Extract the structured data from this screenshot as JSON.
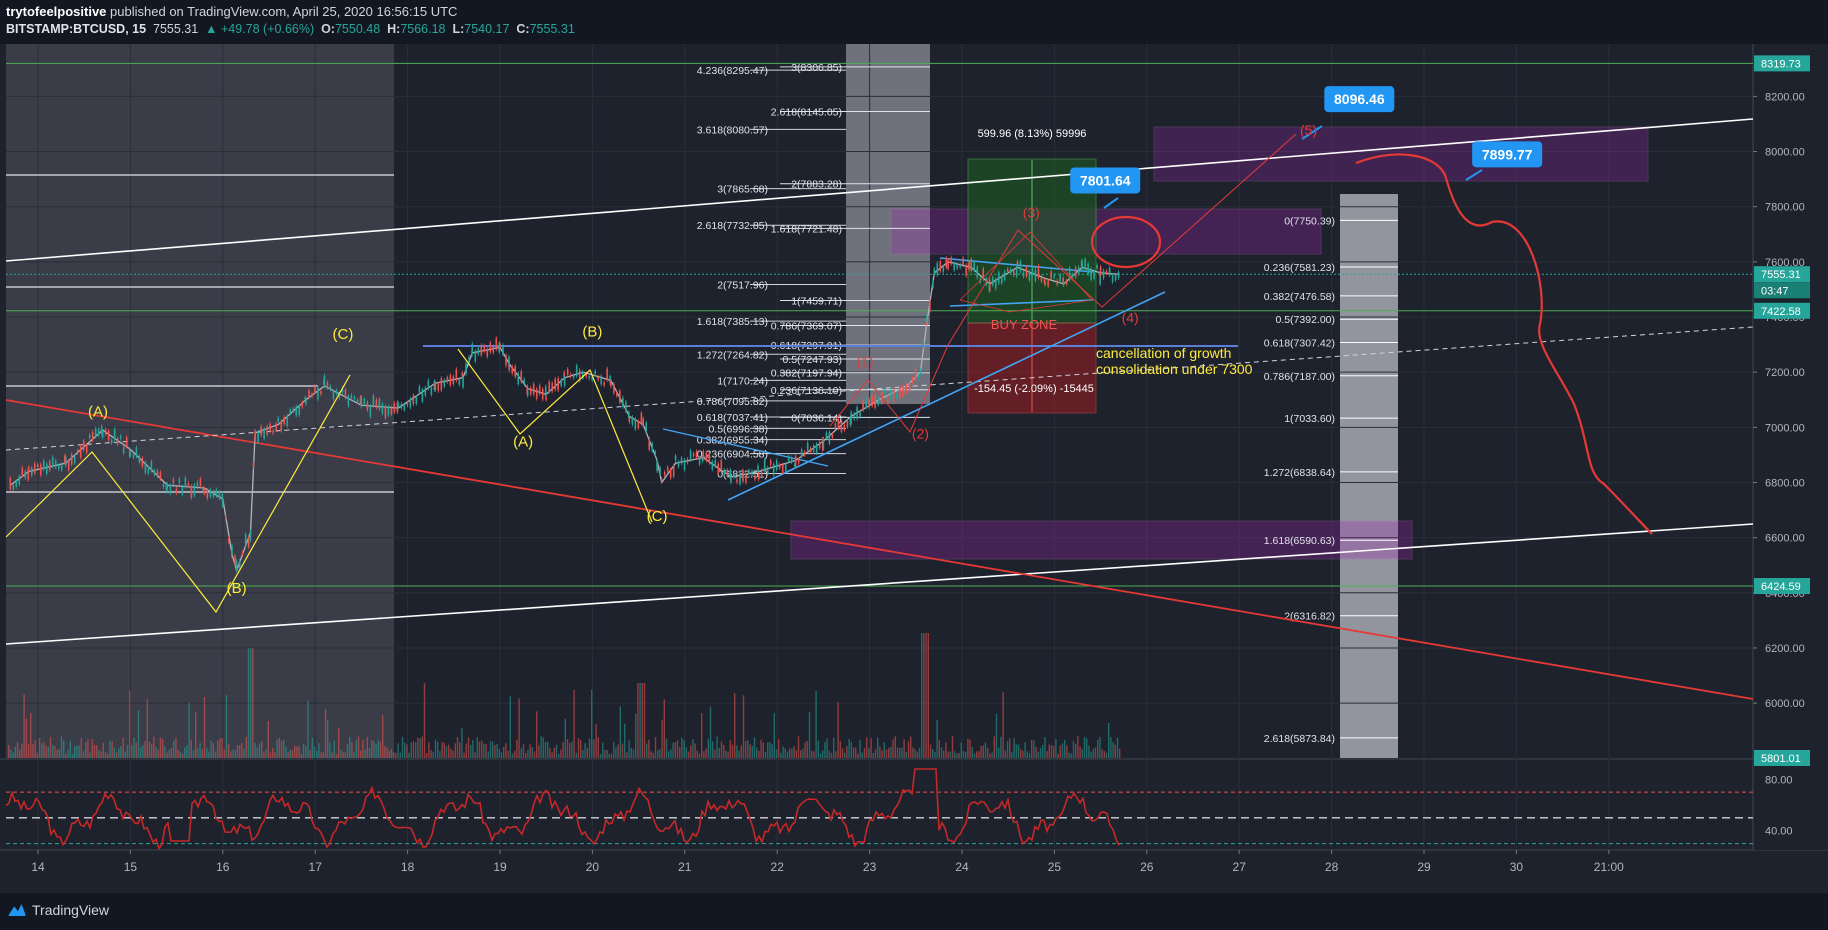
{
  "header": {
    "author": "trytofeelpositive",
    "published_text": "published on TradingView.com, April 25, 2020 16:56:15 UTC",
    "symbol": "BITSTAMP:BTCUSD, 15",
    "last": "7555.31",
    "change": "▲ +49.78 (+0.66%)",
    "open_label": "O:",
    "open": "7550.48",
    "high_label": "H:",
    "high": "7566.18",
    "low_label": "L:",
    "low": "7540.17",
    "close_label": "C:",
    "close": "7555.31"
  },
  "footer": {
    "brand": "TradingView"
  },
  "colors": {
    "background": "#1e222d",
    "grid": "#2a2e39",
    "candle_up": "#26a69a",
    "candle_down": "#ef5350",
    "elliott": "#ffeb3b",
    "trend_red": "#e53935",
    "zone_purple": "#9c27b0",
    "callout": "#2196f3"
  },
  "chart_data": {
    "type": "candlestick",
    "symbol": "BITSTAMP:BTCUSD",
    "interval": "15",
    "y_axis": {
      "range": [
        5801,
        8390
      ],
      "ticks": [
        6000,
        6200,
        6400,
        6600,
        6800,
        7000,
        7200,
        7400,
        7600,
        7800,
        8000,
        8200
      ],
      "tick_labels": [
        "6000.00",
        "6200.00",
        "6400.00",
        "6600.00",
        "6800.00",
        "7000.00",
        "7200.00",
        "7400.00",
        "7600.00",
        "7800.00",
        "8000.00",
        "8200.00"
      ]
    },
    "x_axis": {
      "ticks": [
        14,
        15,
        16,
        17,
        18,
        19,
        20,
        21,
        22,
        23,
        24,
        25,
        26,
        27,
        28,
        29,
        30,
        31
      ],
      "tick_labels": [
        "14",
        "15",
        "16",
        "17",
        "18",
        "19",
        "20",
        "21",
        "22",
        "23",
        "24",
        "25",
        "26",
        "27",
        "28",
        "29",
        "30",
        "21:00"
      ]
    },
    "price_tags": [
      {
        "label": "8319.73",
        "value": 8319.73,
        "color": "#26a69a"
      },
      {
        "label": "7555.31",
        "value": 7555.31,
        "color": "#26a69a"
      },
      {
        "label": "03:47",
        "value": 7497,
        "color": "#26a69a"
      },
      {
        "label": "7422.58",
        "value": 7422.58,
        "color": "#26a69a"
      },
      {
        "label": "6424.59",
        "value": 6424.59,
        "color": "#26a69a"
      },
      {
        "label": "5801.01",
        "value": 5801.01,
        "color": "#26a69a"
      }
    ],
    "price_path": [
      [
        13.7,
        6790
      ],
      [
        13.9,
        6840
      ],
      [
        14.3,
        6870
      ],
      [
        14.7,
        6990
      ],
      [
        15.0,
        6920
      ],
      [
        15.4,
        6790
      ],
      [
        15.8,
        6780
      ],
      [
        16.0,
        6740
      ],
      [
        16.1,
        6540
      ],
      [
        16.15,
        6480
      ],
      [
        16.3,
        6620
      ],
      [
        16.35,
        6980
      ],
      [
        16.6,
        7010
      ],
      [
        16.9,
        7100
      ],
      [
        17.1,
        7150
      ],
      [
        17.5,
        7080
      ],
      [
        17.9,
        7070
      ],
      [
        18.3,
        7160
      ],
      [
        18.6,
        7180
      ],
      [
        18.7,
        7270
      ],
      [
        19.0,
        7290
      ],
      [
        19.1,
        7230
      ],
      [
        19.3,
        7140
      ],
      [
        19.5,
        7120
      ],
      [
        19.7,
        7180
      ],
      [
        19.9,
        7200
      ],
      [
        20.2,
        7170
      ],
      [
        20.4,
        7040
      ],
      [
        20.55,
        7010
      ],
      [
        20.7,
        6880
      ],
      [
        20.75,
        6800
      ],
      [
        20.9,
        6870
      ],
      [
        21.2,
        6890
      ],
      [
        21.5,
        6820
      ],
      [
        21.8,
        6840
      ],
      [
        22.2,
        6880
      ],
      [
        22.5,
        6950
      ],
      [
        22.8,
        7040
      ],
      [
        23.1,
        7100
      ],
      [
        23.4,
        7150
      ],
      [
        23.55,
        7200
      ],
      [
        23.62,
        7380
      ],
      [
        23.7,
        7560
      ],
      [
        23.85,
        7600
      ],
      [
        24.1,
        7580
      ],
      [
        24.3,
        7520
      ],
      [
        24.6,
        7580
      ],
      [
        24.9,
        7540
      ],
      [
        25.1,
        7520
      ],
      [
        25.3,
        7580
      ],
      [
        25.5,
        7560
      ],
      [
        25.7,
        7555
      ]
    ],
    "rsi": {
      "levels": [
        70,
        50,
        30
      ],
      "tick_labels": [
        "80.00",
        "40.00"
      ],
      "tick_values": [
        80,
        40
      ],
      "range": [
        25,
        95
      ]
    },
    "fib_left": [
      {
        "label": "4.236(8295.47)",
        "value": 8295.47
      },
      {
        "label": "3.618(8080.57)",
        "value": 8080.57
      },
      {
        "label": "3(7865.68)",
        "value": 7865.68
      },
      {
        "label": "2.618(7732.85)",
        "value": 7732.85
      },
      {
        "label": "2(7517.96)",
        "value": 7517.96
      },
      {
        "label": "1.618(7385.13)",
        "value": 7385.13
      },
      {
        "label": "1.272(7264.82)",
        "value": 7264.82
      },
      {
        "label": "1(7170.24)",
        "value": 7170.24
      },
      {
        "label": "0.786(7095.82)",
        "value": 7095.82
      },
      {
        "label": "0.618(7037.41)",
        "value": 7037.41
      },
      {
        "label": "0.5(6996.38)",
        "value": 6996.38
      },
      {
        "label": "0.382(6955.34)",
        "value": 6955.34
      },
      {
        "label": "0.236(6904.58)",
        "value": 6904.58
      },
      {
        "label": "0(6832.51)",
        "value": 6832.51
      }
    ],
    "fib_mid": [
      {
        "label": "3(8306.85)",
        "value": 8306.85
      },
      {
        "label": "2.618(8145.05)",
        "value": 8145.05
      },
      {
        "label": "2(7883.28)",
        "value": 7883.28
      },
      {
        "label": "1.618(7721.48)",
        "value": 7721.48
      },
      {
        "label": "1(7459.71)",
        "value": 7459.71
      },
      {
        "label": "0.786(7369.07)",
        "value": 7369.07
      },
      {
        "label": "0.618(7297.91)",
        "value": 7297.91
      },
      {
        "label": "0.5(7247.93)",
        "value": 7247.93
      },
      {
        "label": "0.382(7197.94)",
        "value": 7197.94
      },
      {
        "label": "0.236(7136.10)",
        "value": 7136.1
      },
      {
        "label": "0(7036.14)",
        "value": 7036.14
      }
    ],
    "fib_right": [
      {
        "label": "0(7750.39)",
        "value": 7750.39
      },
      {
        "label": "0.236(7581.23)",
        "value": 7581.23
      },
      {
        "label": "0.382(7476.58)",
        "value": 7476.58
      },
      {
        "label": "0.5(7392.00)",
        "value": 7392.0
      },
      {
        "label": "0.618(7307.42)",
        "value": 7307.42
      },
      {
        "label": "0.786(7187.00)",
        "value": 7187.0
      },
      {
        "label": "1(7033.60)",
        "value": 7033.6
      },
      {
        "label": "1.272(6838.64)",
        "value": 6838.64
      },
      {
        "label": "1.618(6590.63)",
        "value": 6590.63
      },
      {
        "label": "2(6316.82)",
        "value": 6316.82
      },
      {
        "label": "2.618(5873.84)",
        "value": 5873.84
      }
    ],
    "elliott_labels": [
      {
        "text": "(A)",
        "x": 14.65,
        "y": 7040,
        "color": "#ffeb3b"
      },
      {
        "text": "(B)",
        "x": 16.15,
        "y": 6400,
        "color": "#ffeb3b"
      },
      {
        "text": "(C)",
        "x": 17.3,
        "y": 7320,
        "color": "#ffeb3b"
      },
      {
        "text": "(A)",
        "x": 19.25,
        "y": 6930,
        "color": "#ffeb3b"
      },
      {
        "text": "(B)",
        "x": 20.0,
        "y": 7330,
        "color": "#ffeb3b"
      },
      {
        "text": "(C)",
        "x": 20.7,
        "y": 6660,
        "color": "#ffeb3b"
      },
      {
        "text": "(1)",
        "x": 22.95,
        "y": 7220,
        "color": "#e53935"
      },
      {
        "text": "(2)",
        "x": 23.55,
        "y": 6960,
        "color": "#e53935"
      },
      {
        "text": "(3)",
        "x": 24.75,
        "y": 7760,
        "color": "#e53935"
      },
      {
        "text": "(4)",
        "x": 25.82,
        "y": 7380,
        "color": "#e53935"
      },
      {
        "text": "(5)",
        "x": 27.75,
        "y": 8060,
        "color": "#e53935"
      }
    ],
    "callouts": [
      {
        "text": "8096.46",
        "x": 28.3,
        "y": 8190
      },
      {
        "text": "7899.77",
        "x": 29.9,
        "y": 7990
      },
      {
        "text": "7801.64",
        "x": 25.55,
        "y": 7895
      }
    ],
    "annotations": {
      "measure": "599.96 (8.13%) 59996",
      "buy_zone": "BUY ZONE",
      "drop": "-154.45 (-2.09%) -15445",
      "cancellation_1": "cancellation of growth",
      "cancellation_2": "consolidation under 7300"
    }
  }
}
